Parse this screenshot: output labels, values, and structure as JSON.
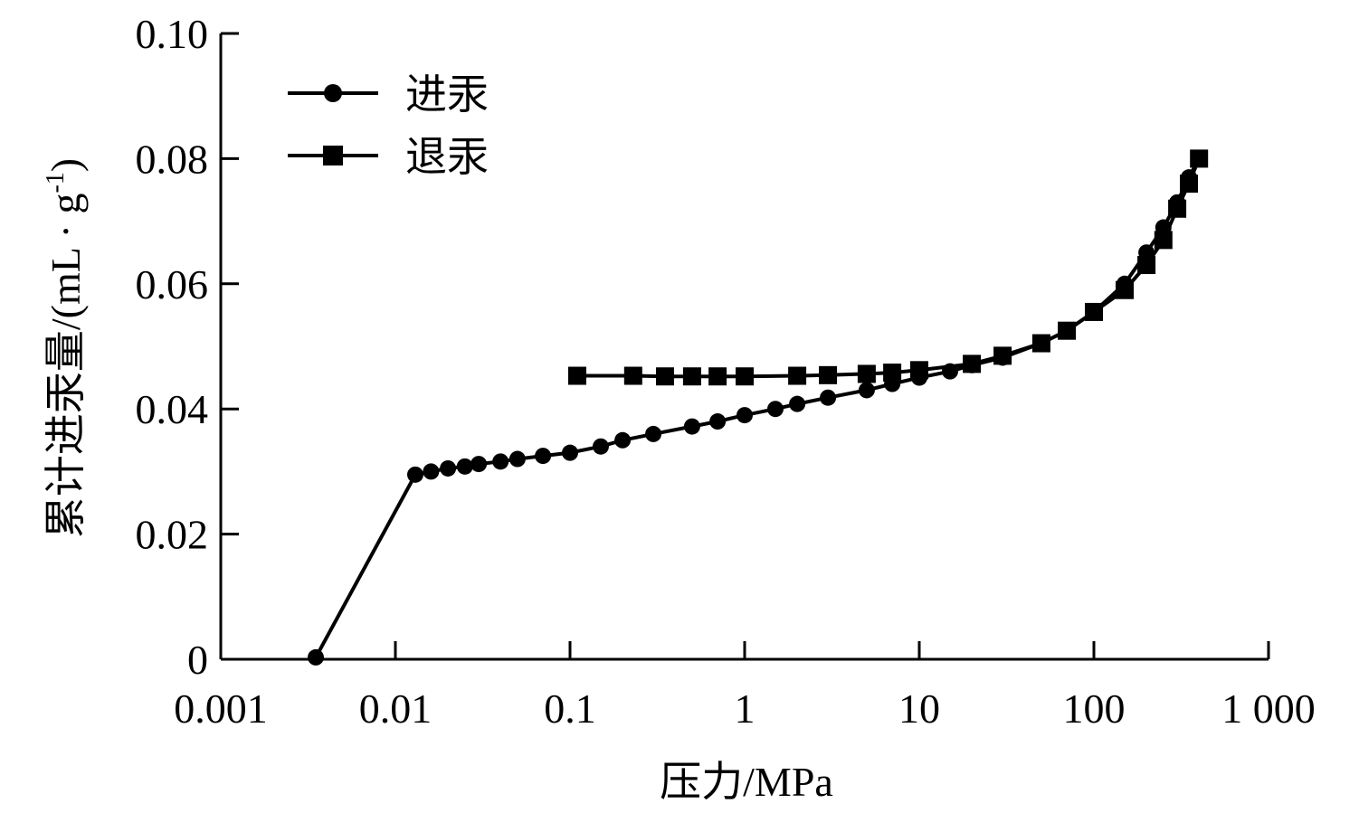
{
  "chart_data": {
    "type": "line",
    "xlabel": "压力/MPa",
    "ylabel": "累计进汞量/(mL · g",
    "ylabel_sup": "-1",
    "ylabel_close": ")",
    "xscale": "log",
    "xlim": [
      0.001,
      1000
    ],
    "ylim": [
      0,
      0.1
    ],
    "xticks": [
      0.001,
      0.01,
      0.1,
      1,
      10,
      100,
      1000
    ],
    "xtick_labels": [
      "0.001",
      "0.01",
      "0.1",
      "1",
      "10",
      "100",
      "1 000"
    ],
    "yticks": [
      0,
      0.02,
      0.04,
      0.06,
      0.08,
      0.1
    ],
    "ytick_labels": [
      "0",
      "0.02",
      "0.04",
      "0.06",
      "0.08",
      "0.10"
    ],
    "grid": false,
    "legend_position": "top-left",
    "series": [
      {
        "name": "进汞",
        "marker": "circle",
        "color": "#000000",
        "x": [
          0.0035,
          0.013,
          0.016,
          0.02,
          0.025,
          0.03,
          0.04,
          0.05,
          0.07,
          0.1,
          0.15,
          0.2,
          0.3,
          0.5,
          0.7,
          1,
          1.5,
          2,
          3,
          5,
          7,
          10,
          15,
          20,
          30,
          50,
          70,
          100,
          150,
          200,
          250,
          300,
          350,
          400
        ],
        "y": [
          0.0003,
          0.0295,
          0.03,
          0.0305,
          0.0308,
          0.0312,
          0.0316,
          0.032,
          0.0325,
          0.033,
          0.034,
          0.035,
          0.036,
          0.0372,
          0.038,
          0.039,
          0.04,
          0.0408,
          0.0418,
          0.043,
          0.044,
          0.045,
          0.046,
          0.047,
          0.0482,
          0.0505,
          0.0525,
          0.0555,
          0.06,
          0.065,
          0.069,
          0.073,
          0.077,
          0.08
        ]
      },
      {
        "name": "退汞",
        "marker": "square",
        "color": "#000000",
        "x": [
          400,
          350,
          300,
          250,
          200,
          150,
          100,
          70,
          50,
          30,
          20,
          10,
          7,
          5,
          3,
          2,
          1,
          0.7,
          0.5,
          0.35,
          0.23,
          0.11
        ],
        "y": [
          0.08,
          0.076,
          0.072,
          0.067,
          0.063,
          0.059,
          0.0555,
          0.0525,
          0.0505,
          0.0485,
          0.0472,
          0.0462,
          0.0458,
          0.0456,
          0.0454,
          0.0453,
          0.0452,
          0.0452,
          0.0452,
          0.0452,
          0.0453,
          0.0453
        ]
      }
    ]
  }
}
